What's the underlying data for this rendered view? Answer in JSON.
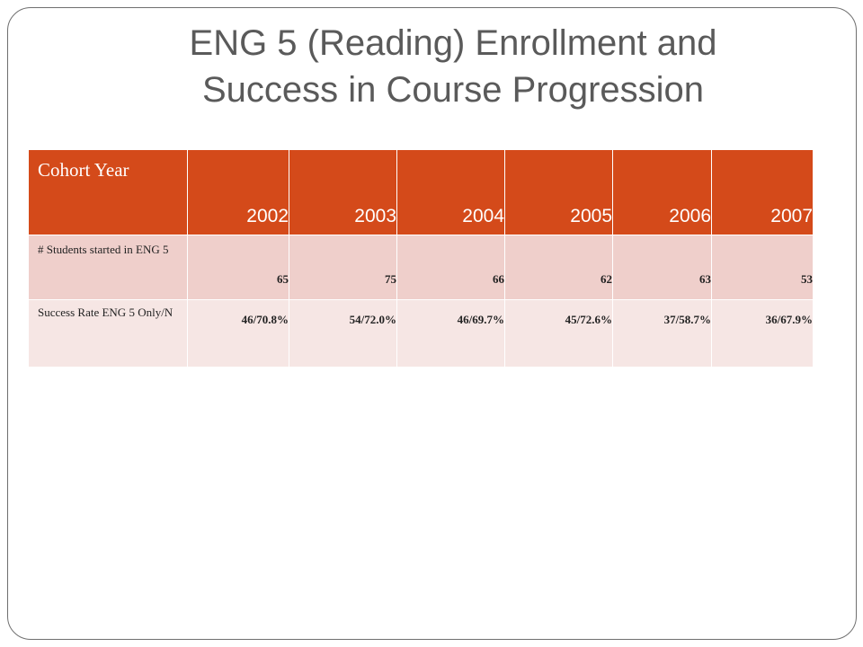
{
  "slide": {
    "title_line1": "ENG 5 (Reading) Enrollment and",
    "title_line2": "Success in Course Progression"
  },
  "table": {
    "header_label": "Cohort Year",
    "years": [
      "2002",
      "2003",
      "2004",
      "2005",
      "2006",
      "2007"
    ],
    "rows": [
      {
        "label": "# Students started in ENG 5",
        "values": [
          "65",
          "75",
          "66",
          "62",
          "63",
          "53"
        ]
      },
      {
        "label": "Success Rate ENG 5 Only/N",
        "values": [
          "46/70.8%",
          "54/72.0%",
          "46/69.7%",
          "45/72.6%",
          "37/58.7%",
          "36/67.9%"
        ]
      }
    ]
  },
  "colors": {
    "header_bg": "#d44a1a",
    "row1_bg": "#efcfcb",
    "row2_bg": "#f6e6e4",
    "title_text": "#5a5a5a"
  }
}
